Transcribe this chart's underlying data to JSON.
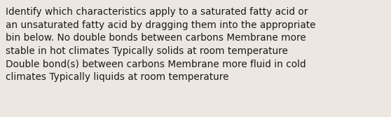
{
  "text": "Identify which characteristics apply to a saturated fatty acid or\nan unsaturated fatty acid by dragging them into the appropriate\nbin below. No double bonds between carbons Membrane more\nstable in hot climates Typically solids at room temperature\nDouble bond(s) between carbons Membrane more fluid in cold\nclimates Typically liquids at room temperature",
  "background_color": "#ece8e1",
  "text_color": "#1a1a1a",
  "font_size": 9.8,
  "font_family": "DejaVu Sans",
  "fig_width": 5.58,
  "fig_height": 1.67,
  "dpi": 100
}
